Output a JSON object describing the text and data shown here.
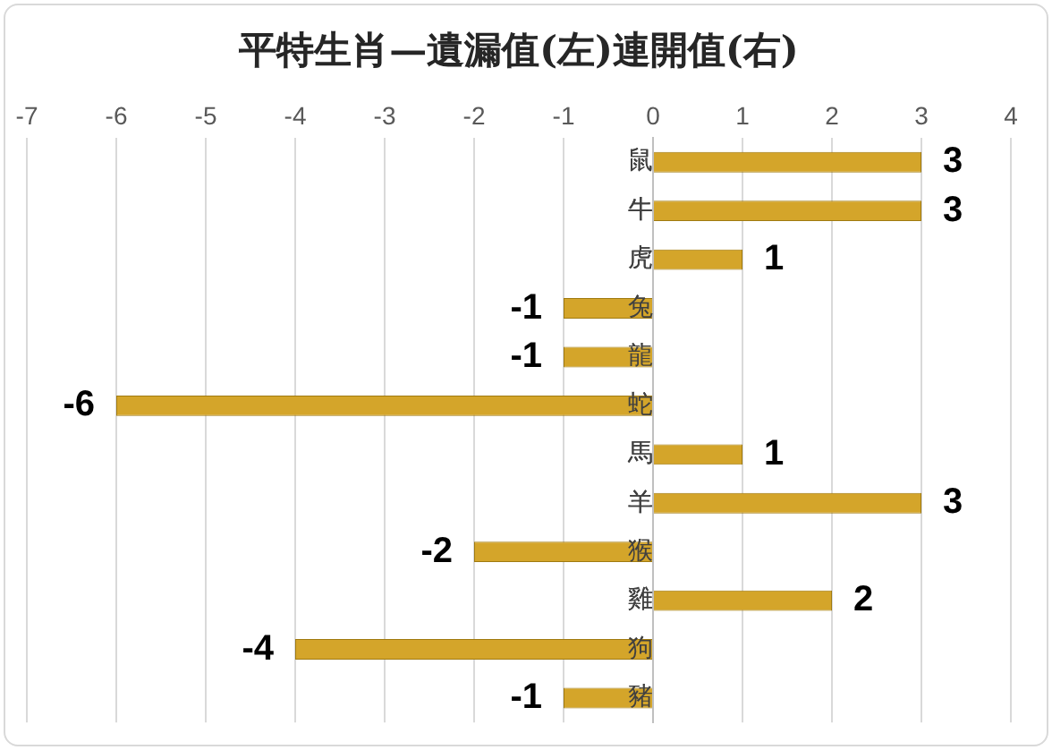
{
  "chart_data": {
    "type": "bar",
    "orientation": "horizontal",
    "title": "平特生肖—遺漏值(左)連開值(右)",
    "categories": [
      "鼠",
      "牛",
      "虎",
      "兔",
      "龍",
      "蛇",
      "馬",
      "羊",
      "猴",
      "雞",
      "狗",
      "豬"
    ],
    "values": [
      3,
      3,
      1,
      -1,
      -1,
      -6,
      1,
      3,
      -2,
      2,
      -4,
      -1
    ],
    "color": "#d4a52a",
    "xlim": [
      -7,
      4
    ],
    "xticks": [
      -7,
      -6,
      -5,
      -4,
      -3,
      -2,
      -1,
      0,
      1,
      2,
      3,
      4
    ],
    "grid": "x",
    "legend": false,
    "data_labels": true
  }
}
